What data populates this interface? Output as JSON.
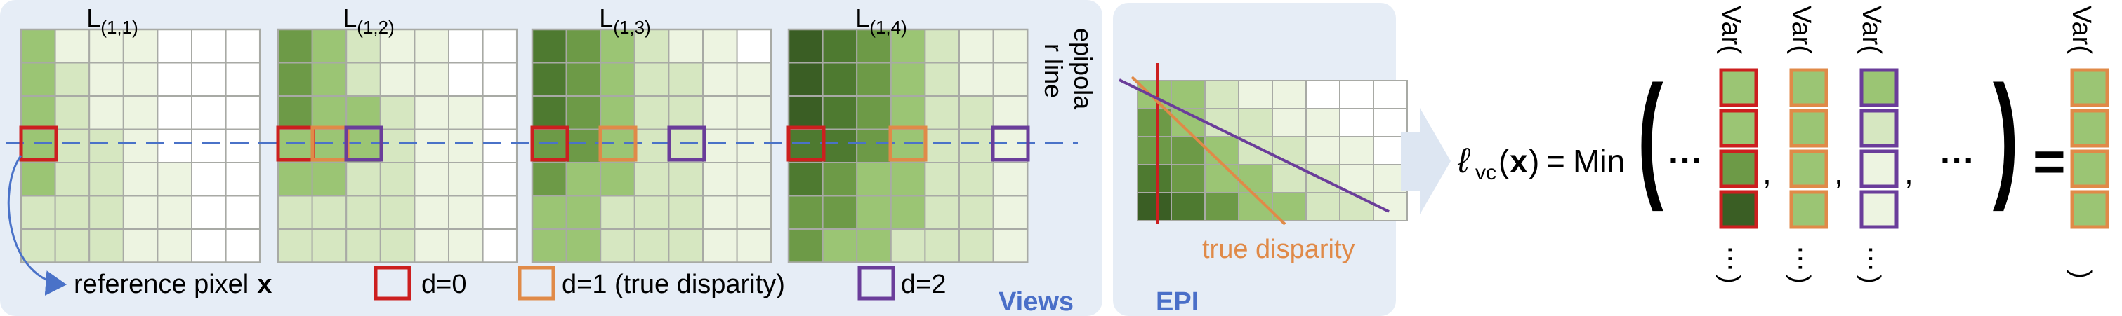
{
  "views_panel": {
    "title": "Views",
    "view_labels": [
      {
        "base": "L",
        "sub": "(1,1)"
      },
      {
        "base": "L",
        "sub": "(1,2)"
      },
      {
        "base": "L",
        "sub": "(1,3)"
      },
      {
        "base": "L",
        "sub": "(1,4)"
      }
    ],
    "epipolar_label_line1": "epipola",
    "epipolar_label_line2": "r line",
    "reference_label": "reference pixel",
    "reference_symbol": "x"
  },
  "legend": {
    "items": [
      {
        "label": "d=0",
        "color": "#cc1f1f"
      },
      {
        "label": "d=1 (true disparity)",
        "color": "#e08a48"
      },
      {
        "label": "d=2",
        "color": "#6a3d9a"
      }
    ]
  },
  "epi_panel": {
    "title": "EPI",
    "true_disparity_label": "true disparity"
  },
  "equation": {
    "lhs_symbol": "ℓ",
    "lhs_sub": "vc",
    "lhs_open": "(",
    "lhs_arg": "x",
    "lhs_close": ")",
    "equals": "=",
    "min": "Min",
    "open_paren": "(",
    "dots": "···",
    "comma": ",",
    "close_paren": ")",
    "equals2": "=",
    "var_open": "Var(",
    "var_dots": "⋯",
    "var_close": ")"
  },
  "colors": {
    "panel_bg": "#e6edf6",
    "title_blue": "#4a6fc8",
    "epipolar_dash": "#4a72c8",
    "arrow_fill": "#dde6f2",
    "cell_lightest": "#edf4e1",
    "cell_light": "#d6e7c1",
    "cell_mid": "#9bc574",
    "cell_dark": "#6d9a47",
    "cell_darker": "#4e7a30",
    "cell_darkest": "#3a5e24",
    "grid_line": "#a8aaa5"
  }
}
